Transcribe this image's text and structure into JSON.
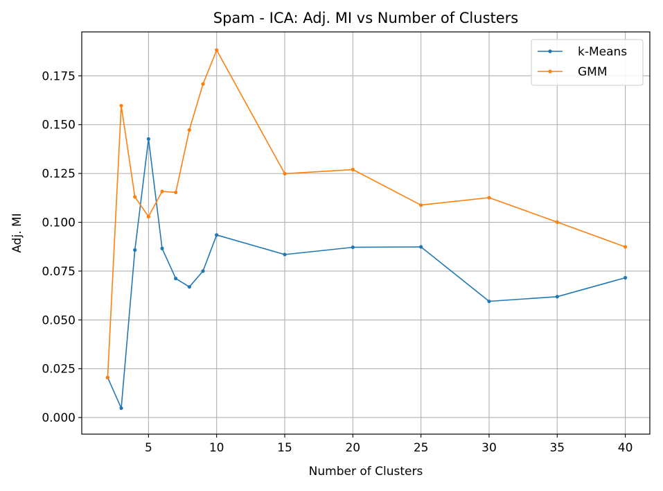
{
  "chart_data": {
    "type": "line",
    "title": "Spam - ICA: Adj. MI vs Number of Clusters",
    "xlabel": "Number of Clusters",
    "ylabel": "Adj. MI",
    "x": [
      2,
      3,
      4,
      5,
      6,
      7,
      8,
      9,
      10,
      15,
      20,
      25,
      30,
      35,
      40
    ],
    "xlim": [
      0.1,
      41.8
    ],
    "ylim": [
      -0.0085,
      0.1975
    ],
    "xticks": [
      5,
      10,
      15,
      20,
      25,
      30,
      35,
      40
    ],
    "xtick_labels": [
      "5",
      "10",
      "15",
      "20",
      "25",
      "30",
      "35",
      "40"
    ],
    "yticks": [
      0.0,
      0.025,
      0.05,
      0.075,
      0.1,
      0.125,
      0.15,
      0.175
    ],
    "ytick_labels": [
      "0.000",
      "0.025",
      "0.050",
      "0.075",
      "0.100",
      "0.125",
      "0.150",
      "0.175"
    ],
    "grid": true,
    "legend_position": "top-right",
    "series": [
      {
        "name": "k-Means",
        "color": "#1f77b4",
        "values": [
          0.0205,
          0.0048,
          0.0858,
          0.1427,
          0.0866,
          0.0712,
          0.0669,
          0.075,
          0.0935,
          0.0835,
          0.0872,
          0.0874,
          0.0595,
          0.0619,
          0.0716
        ]
      },
      {
        "name": "GMM",
        "color": "#ff7f0e",
        "values": [
          0.0205,
          0.1597,
          0.113,
          0.1029,
          0.1158,
          0.1153,
          0.1473,
          0.1708,
          0.1882,
          0.1249,
          0.127,
          0.1088,
          0.1126,
          0.1001,
          0.0874
        ]
      }
    ]
  }
}
